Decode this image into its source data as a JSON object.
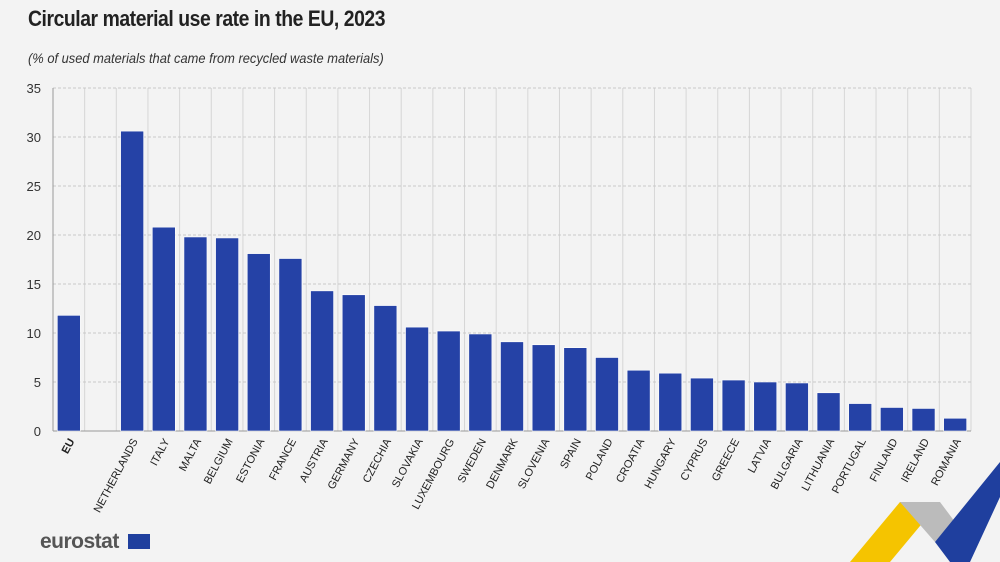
{
  "title": "Circular material use rate in the EU, 2023",
  "subtitle": "(% of used materials that came from recycled waste materials)",
  "logo": "eurostat",
  "colors": {
    "bar": "#2542a6",
    "background": "#f3f3f3"
  },
  "chart_data": {
    "type": "bar",
    "title": "Circular material use rate in the EU, 2023",
    "subtitle": "(% of used materials that came from recycled waste materials)",
    "categories": [
      "EU",
      "",
      "NETHERLANDS",
      "ITALY",
      "MALTA",
      "BELGIUM",
      "ESTONIA",
      "FRANCE",
      "AUSTRIA",
      "GERMANY",
      "CZECHIA",
      "SLOVAKIA",
      "LUXEMBOURG",
      "SWEDEN",
      "DENMARK",
      "SLOVENIA",
      "SPAIN",
      "POLAND",
      "CROATIA",
      "HUNGARY",
      "CYPRUS",
      "GREECE",
      "LATVIA",
      "BULGARIA",
      "LITHUANIA",
      "PORTUGAL",
      "FINLAND",
      "IRELAND",
      "ROMANIA"
    ],
    "values": [
      11.8,
      null,
      30.6,
      20.8,
      19.8,
      19.7,
      18.1,
      17.6,
      14.3,
      13.9,
      12.8,
      10.6,
      10.2,
      9.9,
      9.1,
      8.8,
      8.5,
      7.5,
      6.2,
      5.9,
      5.4,
      5.2,
      5.0,
      4.9,
      3.9,
      2.8,
      2.4,
      2.3,
      1.3
    ],
    "ylim": [
      0,
      35
    ],
    "yticks": [
      0,
      5,
      10,
      15,
      20,
      25,
      30,
      35
    ],
    "grid": true,
    "legend": "none"
  }
}
